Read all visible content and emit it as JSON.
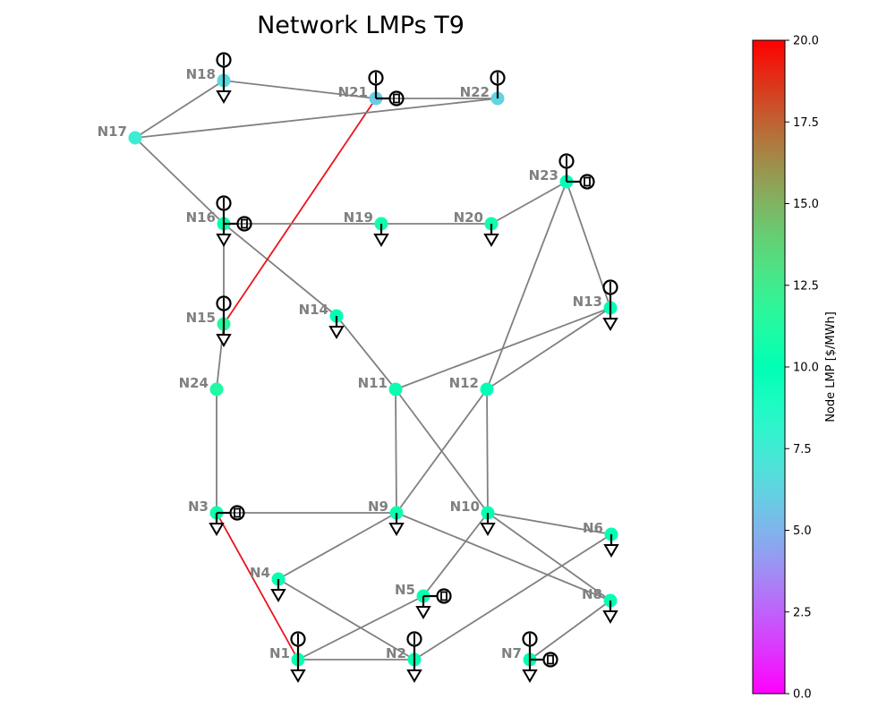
{
  "title": "Network LMPs T9",
  "colorbar": {
    "label": "Node LMP [$/MWh]",
    "min": 0.0,
    "max": 20.0,
    "colormap": "rainbow",
    "ticks": [
      "0.0",
      "2.5",
      "5.0",
      "7.5",
      "10.0",
      "12.5",
      "15.0",
      "17.5",
      "20.0"
    ]
  },
  "colors": {
    "line_normal": "#808080",
    "line_congested": "#e8141a",
    "node_label": "#808080",
    "symbol": "#000000"
  },
  "nodes": [
    {
      "id": "N1",
      "lmp": 10.2,
      "generator": true,
      "load": true,
      "storage": false
    },
    {
      "id": "N2",
      "lmp": 10.2,
      "generator": true,
      "load": true,
      "storage": false
    },
    {
      "id": "N3",
      "lmp": 10.6,
      "generator": false,
      "load": true,
      "storage": true
    },
    {
      "id": "N4",
      "lmp": 10.3,
      "generator": false,
      "load": true,
      "storage": false
    },
    {
      "id": "N5",
      "lmp": 10.2,
      "generator": false,
      "load": true,
      "storage": true
    },
    {
      "id": "N6",
      "lmp": 10.1,
      "generator": false,
      "load": true,
      "storage": false
    },
    {
      "id": "N7",
      "lmp": 10.1,
      "generator": true,
      "load": true,
      "storage": true
    },
    {
      "id": "N8",
      "lmp": 10.1,
      "generator": false,
      "load": true,
      "storage": false
    },
    {
      "id": "N9",
      "lmp": 10.3,
      "generator": false,
      "load": true,
      "storage": false
    },
    {
      "id": "N10",
      "lmp": 10.1,
      "generator": false,
      "load": true,
      "storage": false
    },
    {
      "id": "N11",
      "lmp": 10.2,
      "generator": false,
      "load": false,
      "storage": false
    },
    {
      "id": "N12",
      "lmp": 10.0,
      "generator": false,
      "load": false,
      "storage": false
    },
    {
      "id": "N13",
      "lmp": 10.0,
      "generator": true,
      "load": true,
      "storage": false
    },
    {
      "id": "N14",
      "lmp": 10.0,
      "generator": false,
      "load": true,
      "storage": false
    },
    {
      "id": "N15",
      "lmp": 11.6,
      "generator": true,
      "load": true,
      "storage": false
    },
    {
      "id": "N16",
      "lmp": 10.4,
      "generator": true,
      "load": true,
      "storage": true
    },
    {
      "id": "N17",
      "lmp": 7.6,
      "generator": false,
      "load": false,
      "storage": false
    },
    {
      "id": "N18",
      "lmp": 6.6,
      "generator": true,
      "load": true,
      "storage": false
    },
    {
      "id": "N19",
      "lmp": 10.6,
      "generator": false,
      "load": true,
      "storage": false
    },
    {
      "id": "N20",
      "lmp": 10.6,
      "generator": false,
      "load": true,
      "storage": false
    },
    {
      "id": "N21",
      "lmp": 5.9,
      "generator": true,
      "load": false,
      "storage": true
    },
    {
      "id": "N22",
      "lmp": 6.2,
      "generator": true,
      "load": false,
      "storage": false
    },
    {
      "id": "N23",
      "lmp": 9.9,
      "generator": true,
      "load": false,
      "storage": true
    },
    {
      "id": "N24",
      "lmp": 11.2,
      "generator": false,
      "load": false,
      "storage": false
    }
  ],
  "edges": [
    {
      "from": "N1",
      "to": "N2",
      "congested": false
    },
    {
      "from": "N1",
      "to": "N3",
      "congested": true
    },
    {
      "from": "N1",
      "to": "N5",
      "congested": false
    },
    {
      "from": "N2",
      "to": "N4",
      "congested": false
    },
    {
      "from": "N2",
      "to": "N6",
      "congested": false
    },
    {
      "from": "N3",
      "to": "N9",
      "congested": false
    },
    {
      "from": "N3",
      "to": "N24",
      "congested": false
    },
    {
      "from": "N4",
      "to": "N9",
      "congested": false
    },
    {
      "from": "N5",
      "to": "N10",
      "congested": false
    },
    {
      "from": "N6",
      "to": "N10",
      "congested": false
    },
    {
      "from": "N7",
      "to": "N8",
      "congested": false
    },
    {
      "from": "N8",
      "to": "N9",
      "congested": false
    },
    {
      "from": "N8",
      "to": "N10",
      "congested": false
    },
    {
      "from": "N9",
      "to": "N11",
      "congested": false
    },
    {
      "from": "N9",
      "to": "N12",
      "congested": false
    },
    {
      "from": "N10",
      "to": "N11",
      "congested": false
    },
    {
      "from": "N10",
      "to": "N12",
      "congested": false
    },
    {
      "from": "N11",
      "to": "N13",
      "congested": false
    },
    {
      "from": "N11",
      "to": "N14",
      "congested": false
    },
    {
      "from": "N12",
      "to": "N13",
      "congested": false
    },
    {
      "from": "N12",
      "to": "N23",
      "congested": false
    },
    {
      "from": "N13",
      "to": "N23",
      "congested": false
    },
    {
      "from": "N14",
      "to": "N16",
      "congested": false
    },
    {
      "from": "N15",
      "to": "N16",
      "congested": false
    },
    {
      "from": "N15",
      "to": "N21",
      "congested": true
    },
    {
      "from": "N15",
      "to": "N24",
      "congested": false
    },
    {
      "from": "N16",
      "to": "N17",
      "congested": false
    },
    {
      "from": "N16",
      "to": "N19",
      "congested": false
    },
    {
      "from": "N17",
      "to": "N18",
      "congested": false
    },
    {
      "from": "N17",
      "to": "N22",
      "congested": false
    },
    {
      "from": "N18",
      "to": "N21",
      "congested": false
    },
    {
      "from": "N19",
      "to": "N20",
      "congested": false
    },
    {
      "from": "N20",
      "to": "N23",
      "congested": false
    },
    {
      "from": "N21",
      "to": "N22",
      "congested": false
    }
  ]
}
